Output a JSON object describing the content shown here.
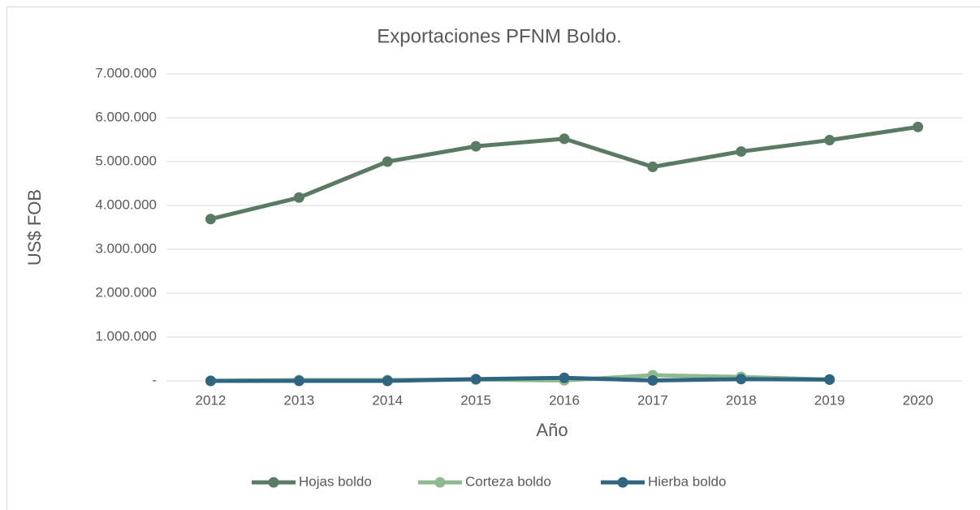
{
  "chart_data": {
    "type": "line",
    "title": "Exportaciones PFNM Boldo.",
    "x_label": "Año",
    "y_label": "US$ FOB",
    "categories": [
      "2012",
      "2013",
      "2014",
      "2015",
      "2016",
      "2017",
      "2018",
      "2019",
      "2020"
    ],
    "series": [
      {
        "name": "Hojas boldo",
        "color": "#5b7a63",
        "values": [
          3690000,
          4180000,
          5000000,
          5350000,
          5520000,
          4880000,
          5230000,
          5490000,
          5790000
        ]
      },
      {
        "name": "Corteza boldo",
        "color": "#8fb98f",
        "values": [
          0,
          20000,
          20000,
          30000,
          10000,
          130000,
          90000,
          30000,
          null
        ]
      },
      {
        "name": "Hierba boldo",
        "color": "#2f6581",
        "values": [
          0,
          0,
          0,
          40000,
          70000,
          10000,
          40000,
          30000,
          null
        ]
      }
    ],
    "ylim": [
      0,
      7000000
    ],
    "yticks": [
      {
        "value": 0,
        "label": "-"
      },
      {
        "value": 1000000,
        "label": "1.000.000"
      },
      {
        "value": 2000000,
        "label": "2.000.000"
      },
      {
        "value": 3000000,
        "label": "3.000.000"
      },
      {
        "value": 4000000,
        "label": "4.000.000"
      },
      {
        "value": 5000000,
        "label": "5.000.000"
      },
      {
        "value": 6000000,
        "label": "6.000.000"
      },
      {
        "value": 7000000,
        "label": "7.000.000"
      }
    ],
    "grid": true,
    "legend": "bottom"
  }
}
